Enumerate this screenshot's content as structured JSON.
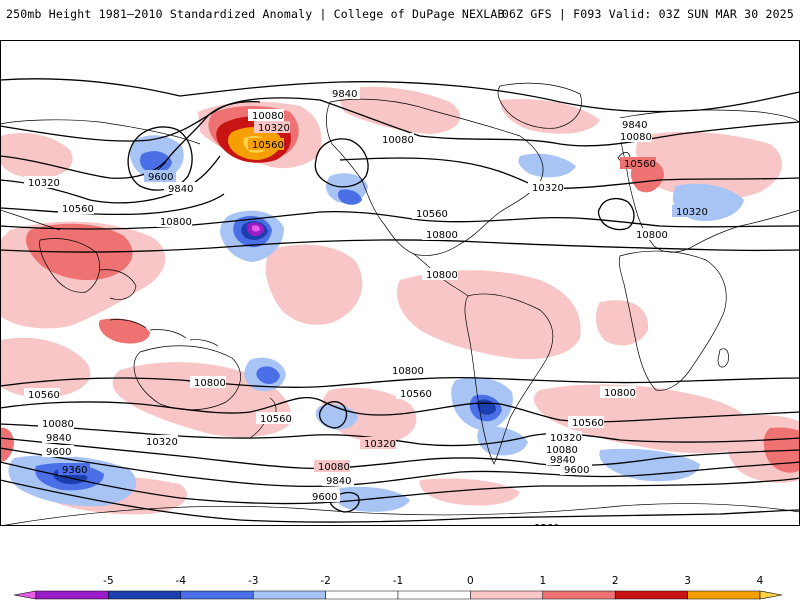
{
  "header": {
    "left_title": "250mb Height 1981–2010 Standardized Anomaly | College of DuPage NEXLAB",
    "right_title": "06Z GFS | F093 Valid: 03Z SUN MAR 30 2025"
  },
  "map": {
    "projection": "cylindrical equidistant (global)",
    "variable": "250mb geopotential height contours with standardized anomaly shading",
    "contour_labels": [
      {
        "id": "c1",
        "text": "9840"
      },
      {
        "id": "c2",
        "text": "10080"
      },
      {
        "id": "c3",
        "text": "10320"
      },
      {
        "id": "c4",
        "text": "10560"
      },
      {
        "id": "c5",
        "text": "9600"
      },
      {
        "id": "c6",
        "text": "9840"
      },
      {
        "id": "c7",
        "text": "10320"
      },
      {
        "id": "c8",
        "text": "10560"
      },
      {
        "id": "c9",
        "text": "10800"
      },
      {
        "id": "c10",
        "text": "10080"
      },
      {
        "id": "c11",
        "text": "10560"
      },
      {
        "id": "c12",
        "text": "10800"
      },
      {
        "id": "c13",
        "text": "10320"
      },
      {
        "id": "c14",
        "text": "9840"
      },
      {
        "id": "c15",
        "text": "10080"
      },
      {
        "id": "c16",
        "text": "10560"
      },
      {
        "id": "c17",
        "text": "10320"
      },
      {
        "id": "c18",
        "text": "10800"
      },
      {
        "id": "c19",
        "text": "10800"
      },
      {
        "id": "c20",
        "text": "10800"
      },
      {
        "id": "c21",
        "text": "10560"
      },
      {
        "id": "c22",
        "text": "10080"
      },
      {
        "id": "c23",
        "text": "9840"
      },
      {
        "id": "c24",
        "text": "9600"
      },
      {
        "id": "c25",
        "text": "10320"
      },
      {
        "id": "c26",
        "text": "9360"
      },
      {
        "id": "c27",
        "text": "10560"
      },
      {
        "id": "c28",
        "text": "10560"
      },
      {
        "id": "c29",
        "text": "10320"
      },
      {
        "id": "c30",
        "text": "10080"
      },
      {
        "id": "c31",
        "text": "9840"
      },
      {
        "id": "c32",
        "text": "9600"
      },
      {
        "id": "c33",
        "text": "9600"
      },
      {
        "id": "c34",
        "text": "9360"
      },
      {
        "id": "c35",
        "text": "10800"
      },
      {
        "id": "c36",
        "text": "10560"
      },
      {
        "id": "c37",
        "text": "10320"
      },
      {
        "id": "c38",
        "text": "10080"
      },
      {
        "id": "c39",
        "text": "9840"
      },
      {
        "id": "c40",
        "text": "10800"
      },
      {
        "id": "c41",
        "text": "10320"
      },
      {
        "id": "c42",
        "text": "10560"
      },
      {
        "id": "c43",
        "text": "10800"
      }
    ]
  },
  "colorbar": {
    "ticks": [
      "-5",
      "-4",
      "-3",
      "-2",
      "-1",
      "0",
      "1",
      "2",
      "3",
      "4",
      "5"
    ],
    "bins": [
      {
        "range": "< -5",
        "color": "#e65de6"
      },
      {
        "range": "-5 to -4",
        "color": "#9a1ec8"
      },
      {
        "range": "-4 to -3",
        "color": "#1c3fb0"
      },
      {
        "range": "-3 to -2",
        "color": "#4a6fe6"
      },
      {
        "range": "-2 to -1",
        "color": "#a8c4f5"
      },
      {
        "range": "-1 to 0",
        "color": "#ffffff"
      },
      {
        "range": "0 to 1",
        "color": "#ffffff"
      },
      {
        "range": "1 to 2",
        "color": "#f8c6c6"
      },
      {
        "range": "2 to 3",
        "color": "#ee7272"
      },
      {
        "range": "3 to 4",
        "color": "#c81414"
      },
      {
        "range": "4 to 5",
        "color": "#f5a000"
      },
      {
        "range": "> 5",
        "color": "#ffd24a"
      }
    ]
  }
}
